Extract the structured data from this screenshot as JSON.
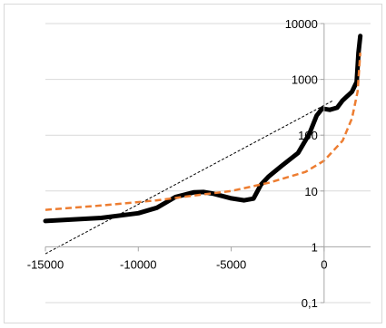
{
  "chart_data": {
    "type": "line",
    "title": "",
    "xlabel": "",
    "ylabel": "",
    "x_ticks": [
      {
        "value": -15000,
        "label": "-15000"
      },
      {
        "value": -10000,
        "label": "-10000"
      },
      {
        "value": -5000,
        "label": "-5000"
      },
      {
        "value": 0,
        "label": "0"
      }
    ],
    "y_ticks": [
      {
        "value": 10000,
        "label": "10000"
      },
      {
        "value": 1000,
        "label": "1000"
      },
      {
        "value": 100,
        "label": "100"
      },
      {
        "value": 10,
        "label": "10"
      },
      {
        "value": 1,
        "label": "1"
      },
      {
        "value": 0.1,
        "label": "0,1"
      }
    ],
    "xlim": [
      -15000,
      2500
    ],
    "ylim": [
      0.1,
      10000
    ],
    "y_scale": "log",
    "grid": {
      "horizontal": true,
      "vertical": false
    },
    "series": [
      {
        "style": "solid-black-thick",
        "color": "#000000",
        "points": [
          [
            -15000,
            2.9
          ],
          [
            -12000,
            3.3
          ],
          [
            -10000,
            4.0
          ],
          [
            -9000,
            5.0
          ],
          [
            -8000,
            7.8
          ],
          [
            -7000,
            9.5
          ],
          [
            -6500,
            9.6
          ],
          [
            -6000,
            9.0
          ],
          [
            -5000,
            7.4
          ],
          [
            -4300,
            6.8
          ],
          [
            -3800,
            7.3
          ],
          [
            -3400,
            13
          ],
          [
            -3000,
            18
          ],
          [
            -2300,
            28
          ],
          [
            -1400,
            48
          ],
          [
            -800,
            105
          ],
          [
            -400,
            225
          ],
          [
            -100,
            300
          ],
          [
            300,
            285
          ],
          [
            700,
            310
          ],
          [
            1000,
            420
          ],
          [
            1500,
            600
          ],
          [
            1750,
            900
          ],
          [
            1850,
            3000
          ],
          [
            1950,
            6000
          ]
        ]
      },
      {
        "style": "dashed-orange",
        "color": "#ED7D31",
        "points": [
          [
            -15000,
            4.6
          ],
          [
            -12000,
            5.5
          ],
          [
            -9000,
            6.8
          ],
          [
            -7000,
            8.3
          ],
          [
            -5000,
            10
          ],
          [
            -3000,
            14
          ],
          [
            -1000,
            22
          ],
          [
            0,
            35
          ],
          [
            1000,
            80
          ],
          [
            1500,
            200
          ],
          [
            1800,
            600
          ],
          [
            1950,
            3000
          ]
        ]
      },
      {
        "style": "dotted-black-trend",
        "color": "#000000",
        "points": [
          [
            -15000,
            0.75
          ],
          [
            500,
            420
          ]
        ]
      }
    ]
  }
}
